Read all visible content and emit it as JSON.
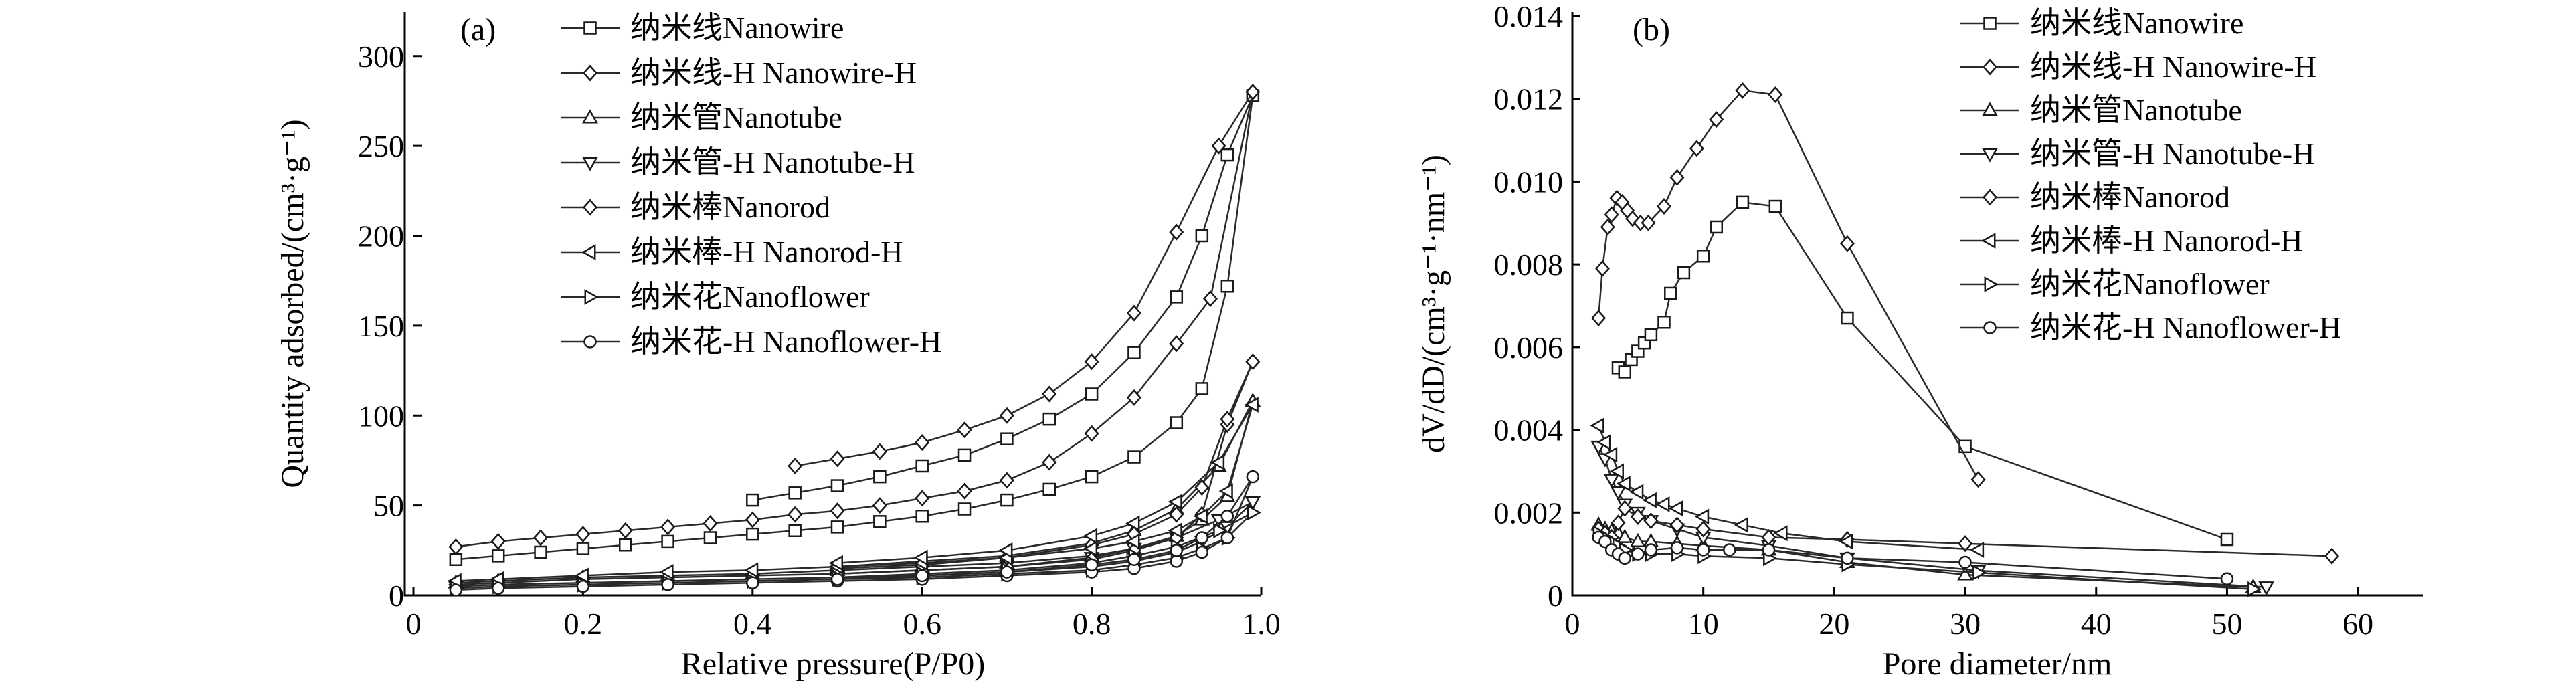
{
  "marker_shapes": [
    "square",
    "diamond",
    "triangle-up",
    "triangle-down",
    "diamond",
    "triangle-left",
    "triangle-right",
    "circle"
  ],
  "chart_data": [
    {
      "type": "line",
      "panel_label": "(a)",
      "xlabel": "Relative pressure(P/P0)",
      "ylabel": "Quantity adsorbed/(cm³·g⁻¹)",
      "xlim": [
        0,
        1.0
      ],
      "ylim": [
        0,
        320
      ],
      "xticks": [
        0,
        0.2,
        0.4,
        0.6,
        0.8,
        1.0
      ],
      "xtick_labels": [
        "0",
        "0.2",
        "0.4",
        "0.6",
        "0.8",
        "1.0"
      ],
      "yticks": [
        0,
        50,
        100,
        150,
        200,
        250,
        300
      ],
      "ytick_labels": [
        "0",
        "50",
        "100",
        "150",
        "200",
        "250",
        "300"
      ],
      "legend_position": "top-left",
      "series": [
        {
          "name": "纳米线Nanowire",
          "x": [
            0.05,
            0.1,
            0.15,
            0.2,
            0.25,
            0.3,
            0.35,
            0.4,
            0.45,
            0.5,
            0.55,
            0.6,
            0.65,
            0.7,
            0.75,
            0.8,
            0.85,
            0.9,
            0.93,
            0.96,
            0.99,
            0.96,
            0.93,
            0.9,
            0.85,
            0.8,
            0.75,
            0.7,
            0.65,
            0.6,
            0.55,
            0.5,
            0.45,
            0.4
          ],
          "y": [
            20,
            22,
            24,
            26,
            28,
            30,
            32,
            34,
            36,
            38,
            41,
            44,
            48,
            53,
            59,
            66,
            77,
            96,
            115,
            172,
            278,
            245,
            200,
            166,
            135,
            112,
            98,
            87,
            78,
            72,
            66,
            61,
            57,
            53
          ]
        },
        {
          "name": "纳米线-H Nanowire-H",
          "x": [
            0.05,
            0.1,
            0.15,
            0.2,
            0.25,
            0.3,
            0.35,
            0.4,
            0.45,
            0.5,
            0.55,
            0.6,
            0.65,
            0.7,
            0.75,
            0.8,
            0.85,
            0.9,
            0.94,
            0.99,
            0.95,
            0.9,
            0.85,
            0.8,
            0.75,
            0.7,
            0.65,
            0.6,
            0.55,
            0.5,
            0.45
          ],
          "y": [
            27,
            30,
            32,
            34,
            36,
            38,
            40,
            42,
            45,
            47,
            50,
            54,
            58,
            64,
            74,
            90,
            110,
            140,
            165,
            280,
            250,
            202,
            157,
            130,
            112,
            100,
            92,
            85,
            80,
            76,
            72
          ]
        },
        {
          "name": "纳米管Nanotube",
          "x": [
            0.05,
            0.1,
            0.2,
            0.3,
            0.4,
            0.5,
            0.6,
            0.7,
            0.8,
            0.85,
            0.9,
            0.93,
            0.96,
            0.99,
            0.95,
            0.9,
            0.85,
            0.8,
            0.7,
            0.6,
            0.5
          ],
          "y": [
            7,
            8,
            10,
            11,
            12,
            14,
            16,
            18,
            22,
            26,
            33,
            42,
            55,
            108,
            72,
            48,
            36,
            29,
            22,
            19,
            16
          ]
        },
        {
          "name": "纳米管-H Nanotube-H",
          "x": [
            0.05,
            0.1,
            0.2,
            0.3,
            0.4,
            0.5,
            0.6,
            0.7,
            0.8,
            0.85,
            0.9,
            0.93,
            0.96,
            0.99,
            0.95,
            0.9,
            0.85,
            0.8,
            0.7,
            0.6,
            0.5
          ],
          "y": [
            5,
            6,
            7,
            8,
            9,
            10,
            11,
            13,
            16,
            19,
            24,
            30,
            38,
            52,
            42,
            32,
            26,
            21,
            16,
            14,
            12
          ]
        },
        {
          "name": "纳米棒Nanorod",
          "x": [
            0.05,
            0.1,
            0.2,
            0.3,
            0.4,
            0.5,
            0.6,
            0.7,
            0.8,
            0.85,
            0.9,
            0.93,
            0.96,
            0.99,
            0.96,
            0.93,
            0.9,
            0.85,
            0.8,
            0.7,
            0.6,
            0.5
          ],
          "y": [
            6,
            7,
            9,
            10,
            11,
            12,
            14,
            16,
            20,
            25,
            32,
            45,
            95,
            130,
            98,
            60,
            45,
            34,
            28,
            21,
            17,
            15
          ]
        },
        {
          "name": "纳米棒-H Nanorod-H",
          "x": [
            0.05,
            0.1,
            0.2,
            0.3,
            0.4,
            0.5,
            0.6,
            0.7,
            0.8,
            0.85,
            0.9,
            0.93,
            0.96,
            0.99,
            0.95,
            0.9,
            0.85,
            0.8,
            0.7,
            0.6,
            0.5
          ],
          "y": [
            8,
            9,
            11,
            13,
            14,
            16,
            18,
            21,
            26,
            30,
            36,
            44,
            58,
            106,
            74,
            52,
            40,
            33,
            25,
            21,
            18
          ]
        },
        {
          "name": "纳米花Nanoflower",
          "x": [
            0.05,
            0.1,
            0.2,
            0.3,
            0.4,
            0.5,
            0.6,
            0.7,
            0.8,
            0.85,
            0.9,
            0.93,
            0.96,
            0.99,
            0.95,
            0.9,
            0.85,
            0.8,
            0.7,
            0.6,
            0.5
          ],
          "y": [
            4,
            5,
            6,
            7,
            8,
            9,
            10,
            12,
            14,
            17,
            21,
            26,
            32,
            46,
            36,
            27,
            22,
            18,
            14,
            12,
            10
          ]
        },
        {
          "name": "纳米花-H Nanoflower-H",
          "x": [
            0.05,
            0.1,
            0.2,
            0.3,
            0.4,
            0.5,
            0.6,
            0.7,
            0.8,
            0.85,
            0.9,
            0.93,
            0.96,
            0.99,
            0.96,
            0.93,
            0.9,
            0.85,
            0.8,
            0.7,
            0.6,
            0.5
          ],
          "y": [
            3,
            4,
            5,
            6,
            7,
            8,
            9,
            11,
            13,
            15,
            19,
            24,
            32,
            66,
            44,
            32,
            25,
            20,
            17,
            13,
            11,
            9
          ]
        }
      ]
    },
    {
      "type": "line",
      "panel_label": "(b)",
      "xlabel": "Pore diameter/nm",
      "ylabel": "dV/dD/(cm³·g⁻¹·nm⁻¹)",
      "xlim": [
        0,
        65
      ],
      "ylim": [
        0,
        0.014
      ],
      "xticks": [
        0,
        10,
        20,
        30,
        40,
        50,
        60
      ],
      "xtick_labels": [
        "0",
        "10",
        "20",
        "30",
        "40",
        "50",
        "60"
      ],
      "yticks": [
        0,
        0.002,
        0.004,
        0.006,
        0.008,
        0.01,
        0.012,
        0.014
      ],
      "ytick_labels": [
        "0",
        "0.002",
        "0.004",
        "0.006",
        "0.008",
        "0.010",
        "0.012",
        "0.014"
      ],
      "legend_position": "top-right",
      "series": [
        {
          "name": "纳米线Nanowire",
          "x": [
            3.5,
            4,
            4.5,
            5,
            5.5,
            6,
            7,
            7.5,
            8.5,
            10,
            11,
            13,
            15.5,
            21,
            30,
            50
          ],
          "y": [
            0.0055,
            0.0054,
            0.0057,
            0.0059,
            0.0061,
            0.0063,
            0.0066,
            0.0073,
            0.0078,
            0.0082,
            0.0089,
            0.0095,
            0.0094,
            0.0067,
            0.0036,
            0.00135
          ]
        },
        {
          "name": "纳米线-H Nanowire-H",
          "x": [
            2,
            2.3,
            2.7,
            3,
            3.4,
            3.8,
            4.2,
            4.6,
            5.2,
            5.8,
            7,
            8,
            9.5,
            11,
            13,
            15.5,
            21,
            31
          ],
          "y": [
            0.0067,
            0.0079,
            0.0089,
            0.0092,
            0.0096,
            0.0095,
            0.0093,
            0.0091,
            0.009,
            0.009,
            0.0094,
            0.0101,
            0.0108,
            0.0115,
            0.0122,
            0.0121,
            0.0085,
            0.0028
          ]
        },
        {
          "name": "纳米管Nanotube",
          "x": [
            2,
            2.5,
            3,
            3.5,
            4,
            5,
            6,
            8,
            10,
            15,
            21,
            30,
            52
          ],
          "y": [
            0.0017,
            0.0016,
            0.00155,
            0.0015,
            0.0014,
            0.0013,
            0.0013,
            0.00125,
            0.0012,
            0.0011,
            0.0008,
            0.0005,
            0.0002
          ]
        },
        {
          "name": "纳米管-H Nanotube-H",
          "x": [
            2,
            2.5,
            3,
            3.5,
            4,
            5,
            6,
            8,
            10,
            15,
            21,
            31,
            53
          ],
          "y": [
            0.0036,
            0.0033,
            0.0028,
            0.0025,
            0.0022,
            0.002,
            0.0018,
            0.0016,
            0.0014,
            0.0012,
            0.0009,
            0.0006,
            0.0002
          ]
        },
        {
          "name": "纳米棒Nanorod",
          "x": [
            2,
            2.5,
            3,
            3.5,
            4,
            5,
            6,
            8,
            10,
            15,
            21,
            30,
            58
          ],
          "y": [
            0.0016,
            0.0015,
            0.0014,
            0.00175,
            0.0021,
            0.0019,
            0.0018,
            0.0017,
            0.0016,
            0.0014,
            0.00135,
            0.00125,
            0.00095
          ]
        },
        {
          "name": "纳米棒-H Nanorod-H",
          "x": [
            2,
            2.5,
            3,
            3.5,
            4,
            5,
            6,
            7,
            8,
            10,
            13,
            16,
            21,
            31
          ],
          "y": [
            0.0041,
            0.0037,
            0.0034,
            0.003,
            0.0027,
            0.0025,
            0.0023,
            0.0022,
            0.0021,
            0.0019,
            0.0017,
            0.0015,
            0.0013,
            0.0011
          ]
        },
        {
          "name": "纳米花Nanoflower",
          "x": [
            2,
            2.5,
            3,
            3.5,
            4,
            5,
            6,
            8,
            10,
            15,
            21,
            31,
            52
          ],
          "y": [
            0.0015,
            0.0014,
            0.0013,
            0.0012,
            0.0011,
            0.001,
            0.001,
            0.001,
            0.00095,
            0.0009,
            0.00075,
            0.00055,
            0.00015
          ]
        },
        {
          "name": "纳米花-H Nanoflower-H",
          "x": [
            2,
            2.5,
            3,
            3.5,
            4,
            5,
            6,
            8,
            10,
            12,
            15,
            21,
            30,
            50
          ],
          "y": [
            0.0014,
            0.0013,
            0.0011,
            0.001,
            0.0009,
            0.001,
            0.0011,
            0.00115,
            0.0011,
            0.0011,
            0.0011,
            0.0009,
            0.0008,
            0.0004
          ]
        }
      ]
    }
  ]
}
